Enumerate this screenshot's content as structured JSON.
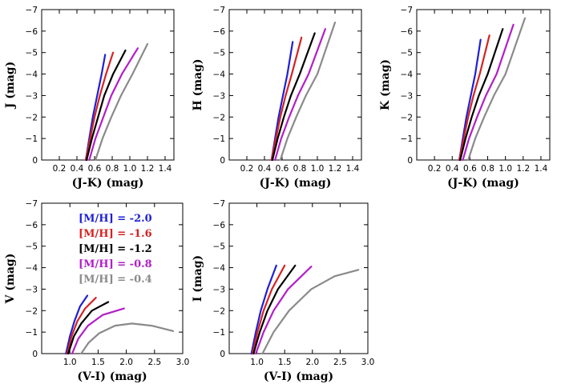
{
  "figure": {
    "legend": [
      {
        "label": "[M/H] = -2.0",
        "color": "#1f1fd6"
      },
      {
        "label": "[M/H] = -1.6",
        "color": "#d62222"
      },
      {
        "label": "[M/H] = -1.2",
        "color": "#000000"
      },
      {
        "label": "[M/H] = -0.8",
        "color": "#b21ec8"
      },
      {
        "label": "[M/H] = -0.4",
        "color": "#8a8a8a"
      }
    ],
    "legend_position": "upper-left of the V vs (V-I) panel"
  },
  "chart_data": [
    {
      "type": "line",
      "xlabel": "(J-K)  (mag)",
      "ylabel": "J  (mag)",
      "xlim": [
        0.0,
        1.5
      ],
      "ylim": [
        0,
        -7
      ],
      "y_inverted": true,
      "xticks": [
        "0.2",
        "0.4",
        "0.6",
        "0.8",
        "1.0",
        "1.2",
        "1.4"
      ],
      "yticks": [
        "−7",
        "−6",
        "−5",
        "−4",
        "−3",
        "−2",
        "−1",
        "0"
      ],
      "series": [
        {
          "name": "[M/H] = -2.0",
          "color": "#1f1fd6",
          "x": [
            0.5,
            0.54,
            0.58,
            0.63,
            0.68,
            0.72
          ],
          "y": [
            0.0,
            -1.0,
            -2.0,
            -3.0,
            -4.0,
            -4.9
          ]
        },
        {
          "name": "[M/H] = -1.6",
          "color": "#d62222",
          "x": [
            0.5,
            0.55,
            0.6,
            0.66,
            0.73,
            0.81
          ],
          "y": [
            0.0,
            -1.0,
            -2.0,
            -3.0,
            -4.0,
            -5.0
          ]
        },
        {
          "name": "[M/H] = -1.2",
          "color": "#000000",
          "x": [
            0.51,
            0.57,
            0.64,
            0.71,
            0.81,
            0.95
          ],
          "y": [
            0.0,
            -1.0,
            -2.0,
            -3.0,
            -4.0,
            -5.1
          ]
        },
        {
          "name": "[M/H] = -0.8",
          "color": "#b21ec8",
          "x": [
            0.54,
            0.61,
            0.7,
            0.79,
            0.91,
            1.09
          ],
          "y": [
            0.0,
            -1.0,
            -2.0,
            -3.0,
            -4.0,
            -5.2
          ]
        },
        {
          "name": "[M/H] = -0.4",
          "color": "#8a8a8a",
          "x": [
            0.61,
            0.69,
            0.79,
            0.9,
            1.03,
            1.2
          ],
          "y": [
            0.0,
            -1.0,
            -2.0,
            -3.0,
            -4.0,
            -5.4
          ]
        }
      ]
    },
    {
      "type": "line",
      "xlabel": "(J-K)  (mag)",
      "ylabel": "H  (mag)",
      "xlim": [
        0.0,
        1.5
      ],
      "ylim": [
        0,
        -7
      ],
      "y_inverted": true,
      "xticks": [
        "0.2",
        "0.4",
        "0.6",
        "0.8",
        "1.0",
        "1.2",
        "1.4"
      ],
      "yticks": [
        "−7",
        "−6",
        "−5",
        "−4",
        "−3",
        "−2",
        "−1",
        "0"
      ],
      "series": [
        {
          "name": "[M/H] = -2.0",
          "color": "#1f1fd6",
          "x": [
            0.48,
            0.52,
            0.56,
            0.61,
            0.66,
            0.72
          ],
          "y": [
            0.0,
            -1.0,
            -2.0,
            -3.0,
            -4.0,
            -5.5
          ]
        },
        {
          "name": "[M/H] = -1.6",
          "color": "#d62222",
          "x": [
            0.48,
            0.53,
            0.58,
            0.64,
            0.71,
            0.82
          ],
          "y": [
            0.0,
            -1.0,
            -2.0,
            -3.0,
            -4.0,
            -5.7
          ]
        },
        {
          "name": "[M/H] = -1.2",
          "color": "#000000",
          "x": [
            0.49,
            0.55,
            0.62,
            0.7,
            0.8,
            0.97
          ],
          "y": [
            0.0,
            -1.0,
            -2.0,
            -3.0,
            -4.0,
            -5.9
          ]
        },
        {
          "name": "[M/H] = -0.8",
          "color": "#b21ec8",
          "x": [
            0.52,
            0.59,
            0.68,
            0.78,
            0.9,
            1.09
          ],
          "y": [
            0.0,
            -1.0,
            -2.0,
            -3.0,
            -4.0,
            -6.1
          ]
        },
        {
          "name": "[M/H] = -0.4",
          "color": "#8a8a8a",
          "x": [
            0.58,
            0.66,
            0.76,
            0.87,
            1.0,
            1.2
          ],
          "y": [
            0.0,
            -1.0,
            -2.0,
            -3.0,
            -4.0,
            -6.4
          ]
        }
      ]
    },
    {
      "type": "line",
      "xlabel": "(J-K)  (mag)",
      "ylabel": "K  (mag)",
      "xlim": [
        0.0,
        1.5
      ],
      "ylim": [
        0,
        -7
      ],
      "y_inverted": true,
      "xticks": [
        "0.2",
        "0.4",
        "0.6",
        "0.8",
        "1.0",
        "1.2",
        "1.4"
      ],
      "yticks": [
        "−7",
        "−6",
        "−5",
        "−4",
        "−3",
        "−2",
        "−1",
        "0"
      ],
      "series": [
        {
          "name": "[M/H] = -2.0",
          "color": "#1f1fd6",
          "x": [
            0.48,
            0.52,
            0.56,
            0.61,
            0.66,
            0.72
          ],
          "y": [
            0.0,
            -1.0,
            -2.0,
            -3.0,
            -4.0,
            -5.6
          ]
        },
        {
          "name": "[M/H] = -1.6",
          "color": "#d62222",
          "x": [
            0.48,
            0.53,
            0.58,
            0.64,
            0.71,
            0.82
          ],
          "y": [
            0.0,
            -1.0,
            -2.0,
            -3.0,
            -4.0,
            -5.8
          ]
        },
        {
          "name": "[M/H] = -1.2",
          "color": "#000000",
          "x": [
            0.49,
            0.55,
            0.62,
            0.7,
            0.8,
            0.97
          ],
          "y": [
            0.0,
            -1.0,
            -2.0,
            -3.0,
            -4.0,
            -6.1
          ]
        },
        {
          "name": "[M/H] = -0.8",
          "color": "#b21ec8",
          "x": [
            0.52,
            0.59,
            0.68,
            0.78,
            0.9,
            1.09
          ],
          "y": [
            0.0,
            -1.0,
            -2.0,
            -3.0,
            -4.0,
            -6.3
          ]
        },
        {
          "name": "[M/H] = -0.4",
          "color": "#8a8a8a",
          "x": [
            0.58,
            0.66,
            0.76,
            0.87,
            1.0,
            1.22
          ],
          "y": [
            0.0,
            -1.0,
            -2.0,
            -3.0,
            -4.0,
            -6.6
          ]
        }
      ]
    },
    {
      "type": "line",
      "xlabel": "(V-I)  (mag)",
      "ylabel": "V  (mag)",
      "xlim": [
        0.5,
        3.0
      ],
      "ylim": [
        0,
        -7
      ],
      "y_inverted": true,
      "xticks": [
        "1.0",
        "1.5",
        "2.0",
        "2.5",
        "3.0"
      ],
      "yticks": [
        "−7",
        "−6",
        "−5",
        "−4",
        "−3",
        "−2",
        "−1",
        "0"
      ],
      "series": [
        {
          "name": "[M/H] = -2.0",
          "color": "#1f1fd6",
          "x": [
            0.93,
            1.0,
            1.08,
            1.18,
            1.31
          ],
          "y": [
            0.0,
            -0.8,
            -1.5,
            -2.2,
            -2.7
          ]
        },
        {
          "name": "[M/H] = -1.6",
          "color": "#d62222",
          "x": [
            0.95,
            1.03,
            1.13,
            1.27,
            1.46
          ],
          "y": [
            0.0,
            -0.8,
            -1.5,
            -2.1,
            -2.6
          ]
        },
        {
          "name": "[M/H] = -1.2",
          "color": "#000000",
          "x": [
            0.97,
            1.07,
            1.2,
            1.39,
            1.68
          ],
          "y": [
            0.0,
            -0.8,
            -1.4,
            -2.0,
            -2.4
          ]
        },
        {
          "name": "[M/H] = -0.8",
          "color": "#b21ec8",
          "x": [
            1.04,
            1.15,
            1.32,
            1.58,
            1.96
          ],
          "y": [
            0.0,
            -0.7,
            -1.3,
            -1.8,
            -2.1
          ]
        },
        {
          "name": "[M/H] = -0.4",
          "color": "#8a8a8a",
          "x": [
            1.2,
            1.33,
            1.52,
            1.8,
            2.1,
            2.45,
            2.83
          ],
          "y": [
            0.0,
            -0.5,
            -0.95,
            -1.3,
            -1.4,
            -1.3,
            -1.05
          ]
        }
      ]
    },
    {
      "type": "line",
      "xlabel": "(V-I)  (mag)",
      "ylabel": "I  (mag)",
      "xlim": [
        0.5,
        3.0
      ],
      "ylim": [
        0,
        -7
      ],
      "y_inverted": true,
      "xticks": [
        "1.0",
        "1.5",
        "2.0",
        "2.5",
        "3.0"
      ],
      "yticks": [
        "−7",
        "−6",
        "−5",
        "−4",
        "−3",
        "−2",
        "−1",
        "0"
      ],
      "series": [
        {
          "name": "[M/H] = -2.0",
          "color": "#1f1fd6",
          "x": [
            0.9,
            0.98,
            1.07,
            1.19,
            1.35
          ],
          "y": [
            0.0,
            -1.0,
            -2.0,
            -3.0,
            -4.1
          ]
        },
        {
          "name": "[M/H] = -1.6",
          "color": "#d62222",
          "x": [
            0.92,
            1.01,
            1.12,
            1.27,
            1.5
          ],
          "y": [
            0.0,
            -1.0,
            -2.0,
            -3.0,
            -4.1
          ]
        },
        {
          "name": "[M/H] = -1.2",
          "color": "#000000",
          "x": [
            0.94,
            1.05,
            1.19,
            1.38,
            1.69
          ],
          "y": [
            0.0,
            -1.0,
            -2.0,
            -3.0,
            -4.1
          ]
        },
        {
          "name": "[M/H] = -0.8",
          "color": "#b21ec8",
          "x": [
            0.98,
            1.12,
            1.3,
            1.56,
            1.98
          ],
          "y": [
            0.0,
            -1.0,
            -2.0,
            -3.0,
            -4.05
          ]
        },
        {
          "name": "[M/H] = -0.4",
          "color": "#8a8a8a",
          "x": [
            1.1,
            1.3,
            1.58,
            1.98,
            2.4,
            2.83
          ],
          "y": [
            0.0,
            -1.0,
            -2.0,
            -3.0,
            -3.6,
            -3.9
          ]
        }
      ]
    }
  ]
}
